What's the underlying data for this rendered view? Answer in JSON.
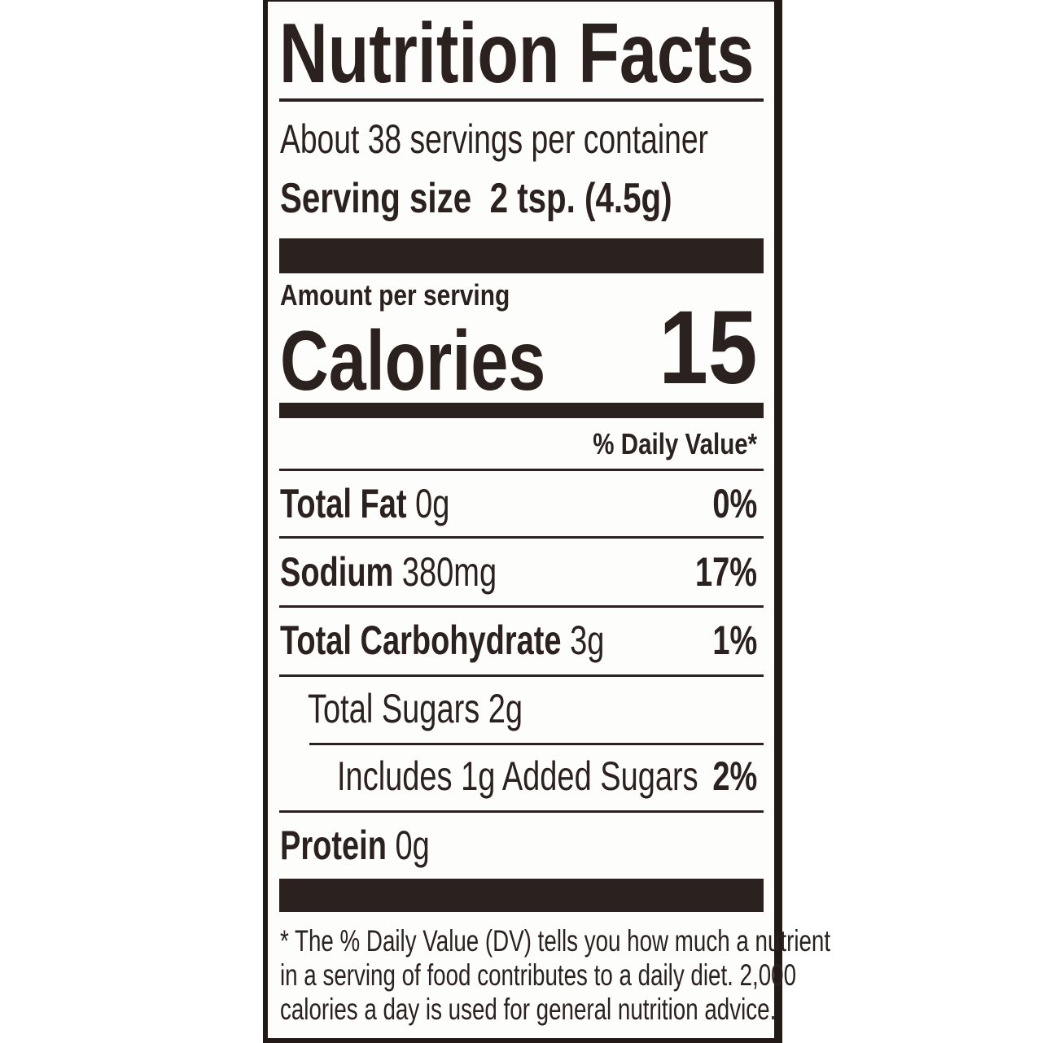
{
  "title": "Nutrition Facts",
  "servings_per_container": "About 38 servings per container",
  "serving_size": {
    "label": "Serving size",
    "value": "2 tsp. (4.5g)"
  },
  "amount_per_serving": "Amount per serving",
  "calories": {
    "label": "Calories",
    "value": "15"
  },
  "daily_value_header": "% Daily Value*",
  "nutrients": [
    {
      "name": "Total Fat",
      "amount": "0g",
      "dv": "0%"
    },
    {
      "name": "Sodium",
      "amount": "380mg",
      "dv": "17%"
    },
    {
      "name": "Total Carbohydrate",
      "amount": "3g",
      "dv": "1%"
    },
    {
      "name": "Total Sugars 2g",
      "amount": "",
      "dv": ""
    },
    {
      "name": "Includes 1g Added Sugars",
      "amount": "",
      "dv": "2%"
    },
    {
      "name": "Protein",
      "amount": "0g",
      "dv": ""
    }
  ],
  "footnote": [
    "* The % Daily Value (DV) tells you how much a nutrient",
    "in a serving of food contributes to a daily diet. 2,000",
    "calories a day is used for general nutrition advice."
  ],
  "colors": {
    "ink": "#2b2220",
    "paper": "#fdfdfc"
  }
}
